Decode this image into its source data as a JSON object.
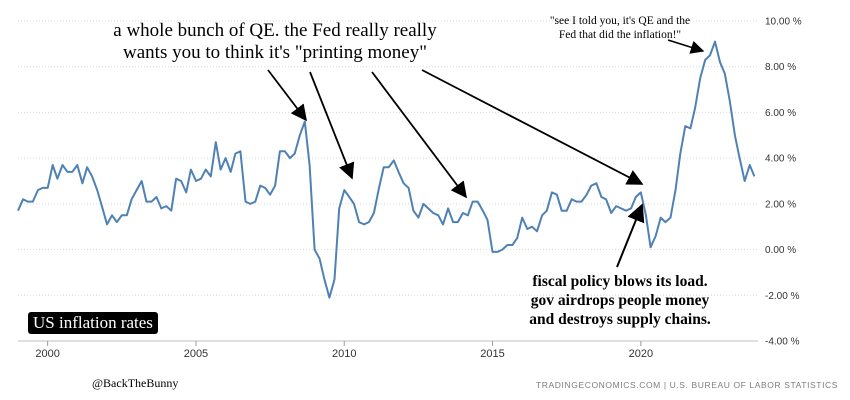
{
  "chart_data": {
    "type": "line",
    "title": "",
    "xlabel": "",
    "ylabel": "",
    "xlim": [
      1999.0,
      2023.95
    ],
    "ylim": [
      -4,
      10
    ],
    "y_ticks": [
      -4,
      -2,
      0,
      2,
      4,
      6,
      8,
      10
    ],
    "y_tick_labels": [
      "-4.00 %",
      "-2.00 %",
      "0.00 %",
      "2.00 %",
      "4.00 %",
      "6.00 %",
      "8.00 %",
      "10.00 %"
    ],
    "x_ticks": [
      2000,
      2005,
      2010,
      2015,
      2020
    ],
    "x_tick_labels": [
      "2000",
      "2005",
      "2010",
      "2015",
      "2020"
    ],
    "axis_position": "right",
    "grid": "horizontal dotted",
    "series_color": "#4f81b3",
    "series": [
      {
        "x": [
          1999.0,
          1999.17,
          1999.33,
          1999.5,
          1999.67,
          1999.83,
          2000.0,
          2000.17,
          2000.33,
          2000.5,
          2000.67,
          2000.83,
          2001.0,
          2001.17,
          2001.33,
          2001.5,
          2001.67,
          2001.83,
          2002.0,
          2002.17,
          2002.33,
          2002.5,
          2002.67,
          2002.83,
          2003.0,
          2003.17,
          2003.33,
          2003.5,
          2003.67,
          2003.83,
          2004.0,
          2004.17,
          2004.33,
          2004.5,
          2004.67,
          2004.83,
          2005.0,
          2005.17,
          2005.33,
          2005.5,
          2005.67,
          2005.83,
          2006.0,
          2006.17,
          2006.33,
          2006.5,
          2006.67,
          2006.83,
          2007.0,
          2007.17,
          2007.33,
          2007.5,
          2007.67,
          2007.83,
          2008.0,
          2008.17,
          2008.33,
          2008.5,
          2008.67,
          2008.83,
          2009.0,
          2009.17,
          2009.33,
          2009.5,
          2009.67,
          2009.83,
          2010.0,
          2010.17,
          2010.33,
          2010.5,
          2010.67,
          2010.83,
          2011.0,
          2011.17,
          2011.33,
          2011.5,
          2011.67,
          2011.83,
          2012.0,
          2012.17,
          2012.33,
          2012.5,
          2012.67,
          2012.83,
          2013.0,
          2013.17,
          2013.33,
          2013.5,
          2013.67,
          2013.83,
          2014.0,
          2014.17,
          2014.33,
          2014.5,
          2014.67,
          2014.83,
          2015.0,
          2015.17,
          2015.33,
          2015.5,
          2015.67,
          2015.83,
          2016.0,
          2016.17,
          2016.33,
          2016.5,
          2016.67,
          2016.83,
          2017.0,
          2017.17,
          2017.33,
          2017.5,
          2017.67,
          2017.83,
          2018.0,
          2018.17,
          2018.33,
          2018.5,
          2018.67,
          2018.83,
          2019.0,
          2019.17,
          2019.33,
          2019.5,
          2019.67,
          2019.83,
          2020.0,
          2020.17,
          2020.33,
          2020.5,
          2020.67,
          2020.83,
          2021.0,
          2021.17,
          2021.33,
          2021.5,
          2021.67,
          2021.83,
          2022.0,
          2022.17,
          2022.33,
          2022.5,
          2022.67,
          2022.83,
          2023.0,
          2023.17,
          2023.33,
          2023.5,
          2023.67,
          2023.83
        ],
        "values": [
          1.7,
          2.2,
          2.1,
          2.1,
          2.6,
          2.7,
          2.7,
          3.7,
          3.1,
          3.7,
          3.4,
          3.4,
          3.7,
          2.9,
          3.6,
          3.2,
          2.6,
          1.9,
          1.1,
          1.5,
          1.2,
          1.5,
          1.5,
          2.2,
          2.6,
          3.0,
          2.1,
          2.1,
          2.3,
          1.8,
          1.9,
          1.7,
          3.1,
          3.0,
          2.5,
          3.5,
          3.0,
          3.1,
          3.5,
          3.2,
          4.7,
          3.5,
          4.0,
          3.4,
          4.2,
          4.3,
          2.1,
          2.0,
          2.1,
          2.8,
          2.7,
          2.4,
          2.8,
          4.3,
          4.3,
          4.0,
          4.2,
          5.0,
          5.6,
          3.7,
          0.0,
          -0.4,
          -1.3,
          -2.1,
          -1.3,
          1.8,
          2.6,
          2.3,
          2.0,
          1.2,
          1.1,
          1.2,
          1.6,
          2.7,
          3.6,
          3.6,
          3.9,
          3.4,
          2.9,
          2.7,
          1.7,
          1.4,
          2.0,
          1.8,
          1.6,
          1.5,
          1.1,
          1.8,
          1.2,
          1.2,
          1.6,
          1.5,
          2.1,
          2.1,
          1.7,
          1.3,
          -0.1,
          -0.1,
          0.0,
          0.2,
          0.2,
          0.5,
          1.4,
          0.9,
          1.0,
          0.8,
          1.5,
          1.7,
          2.5,
          2.4,
          1.7,
          1.7,
          2.2,
          2.1,
          2.1,
          2.4,
          2.8,
          2.9,
          2.3,
          2.2,
          1.6,
          1.9,
          1.8,
          1.7,
          1.8,
          2.3,
          2.5,
          1.5,
          0.1,
          0.6,
          1.4,
          1.2,
          1.4,
          2.6,
          4.2,
          5.4,
          5.3,
          6.2,
          7.5,
          8.3,
          8.5,
          9.1,
          8.2,
          7.7,
          6.5,
          5.0,
          4.0,
          3.0,
          3.7,
          3.2
        ]
      }
    ],
    "annotations": {
      "qe": "a whole bunch of QE. the Fed really really\nwants you to think it's \"printing money\"",
      "told_you": "\"see I told you, it's QE and the\nFed that did the inflation!\"",
      "fiscal": "fiscal policy blows its load.\ngov airdrops people money\nand destroys supply chains."
    },
    "badge": "US inflation rates",
    "handle": "@BackTheBunny",
    "source": "TRADINGECONOMICS.COM | U.S. BUREAU OF LABOR STATISTICS"
  }
}
